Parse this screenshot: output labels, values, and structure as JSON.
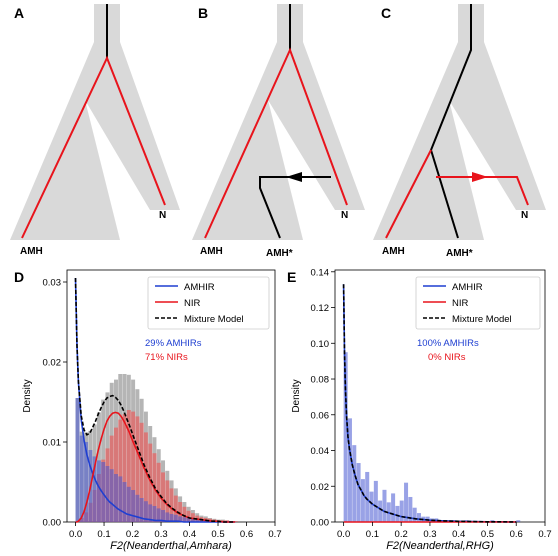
{
  "panels": {
    "A": {
      "label": "A",
      "tips": {
        "amh": "AMH",
        "n": "N"
      }
    },
    "B": {
      "label": "B",
      "tips": {
        "amh": "AMH",
        "amh_star": "AMH*",
        "n": "N"
      }
    },
    "C": {
      "label": "C",
      "tips": {
        "amh": "AMH",
        "amh_star": "AMH*",
        "n": "N"
      }
    }
  },
  "colors": {
    "tree_body": "#d9d9d9",
    "red": "#e8141c",
    "black": "#000000",
    "amhir": "#1f3fd1",
    "nir": "#e8141c",
    "mixture": "#000000"
  },
  "chart_data": [
    {
      "panel": "D",
      "type": "bar",
      "xlabel": "F2(Neanderthal,Amhara)",
      "ylabel": "Density",
      "xlim": [
        -0.03,
        0.7
      ],
      "ylim": [
        0,
        0.0315
      ],
      "xticks": [
        "0.0",
        "0.1",
        "0.2",
        "0.3",
        "0.4",
        "0.5",
        "0.6",
        "0.7"
      ],
      "yticks": [
        "0.00",
        "0.01",
        "0.02",
        "0.03"
      ],
      "legend": [
        "AMHIR",
        "NIR",
        "Mixture Model"
      ],
      "legend_position": "top-right",
      "annotations": [
        {
          "text": "29% AMHIRs",
          "color": "#1f3fd1"
        },
        {
          "text": "71% NIRs",
          "color": "#e8141c"
        }
      ],
      "bin_width": 0.015,
      "hist_blue": [
        0.0155,
        0.0108,
        0.01,
        0.009,
        0.0082,
        0.0077,
        0.0075,
        0.007,
        0.0066,
        0.006,
        0.0057,
        0.005,
        0.0044,
        0.004,
        0.0034,
        0.003,
        0.0026,
        0.0022,
        0.002,
        0.0017,
        0.0015,
        0.0012,
        0.001,
        0.0009,
        0.0007,
        0.0006,
        0.0005,
        0.0004,
        0.0003,
        0.0002,
        0.0002,
        0.0001,
        0.0001,
        0.0001,
        0.0001,
        0.0,
        0.0,
        0.0
      ],
      "hist_red": [
        0.0,
        0.0005,
        0.0012,
        0.0024,
        0.004,
        0.006,
        0.0078,
        0.0092,
        0.0108,
        0.0118,
        0.0128,
        0.0135,
        0.014,
        0.0138,
        0.0132,
        0.0124,
        0.0112,
        0.0098,
        0.0086,
        0.0074,
        0.0062,
        0.0052,
        0.0042,
        0.0033,
        0.0025,
        0.0019,
        0.0014,
        0.0011,
        0.0008,
        0.0006,
        0.0005,
        0.0004,
        0.0003,
        0.0002,
        0.0002,
        0.0002,
        0.0001,
        0.0001
      ],
      "hist_total": [
        0.0155,
        0.0113,
        0.0112,
        0.0114,
        0.0122,
        0.0137,
        0.0153,
        0.0162,
        0.0174,
        0.0178,
        0.0185,
        0.0185,
        0.0184,
        0.0178,
        0.0166,
        0.0154,
        0.0138,
        0.012,
        0.0106,
        0.0091,
        0.0077,
        0.0064,
        0.0052,
        0.0042,
        0.0032,
        0.0025,
        0.0019,
        0.0015,
        0.0011,
        0.0008,
        0.0007,
        0.0005,
        0.0004,
        0.0003,
        0.0003,
        0.0002,
        0.0001,
        0.0001
      ],
      "curves": {
        "x": [
          0.0,
          0.005,
          0.01,
          0.02,
          0.03,
          0.04,
          0.05,
          0.06,
          0.07,
          0.08,
          0.09,
          0.1,
          0.11,
          0.12,
          0.13,
          0.14,
          0.15,
          0.16,
          0.17,
          0.18,
          0.19,
          0.2,
          0.22,
          0.24,
          0.26,
          0.28,
          0.3,
          0.32,
          0.34,
          0.36,
          0.38,
          0.4,
          0.42,
          0.44,
          0.46,
          0.48,
          0.5,
          0.52,
          0.54,
          0.56
        ],
        "amhir": [
          0.0305,
          0.022,
          0.0175,
          0.0128,
          0.0102,
          0.0084,
          0.0071,
          0.0061,
          0.0052,
          0.0045,
          0.0039,
          0.0034,
          0.0029,
          0.0025,
          0.0022,
          0.0019,
          0.0016,
          0.0014,
          0.0012,
          0.001,
          0.0009,
          0.0008,
          0.0006,
          0.0004,
          0.0003,
          0.0002,
          0.0002,
          0.0001,
          0.0001,
          0.0001,
          0.0,
          0.0,
          0.0,
          0.0,
          0.0,
          0.0,
          0.0,
          0.0,
          0.0,
          0.0
        ],
        "nir": [
          0.0,
          0.0,
          0.0001,
          0.0005,
          0.0013,
          0.0025,
          0.004,
          0.0057,
          0.0074,
          0.009,
          0.0104,
          0.0116,
          0.0126,
          0.0132,
          0.0136,
          0.0137,
          0.0136,
          0.0132,
          0.0126,
          0.0119,
          0.0111,
          0.0102,
          0.0085,
          0.0068,
          0.0053,
          0.004,
          0.003,
          0.0022,
          0.0016,
          0.0011,
          0.0008,
          0.0005,
          0.0004,
          0.0003,
          0.0002,
          0.0001,
          0.0001,
          0.0,
          0.0,
          0.0
        ],
        "mixture": [
          0.0305,
          0.022,
          0.0176,
          0.0133,
          0.0115,
          0.0109,
          0.0111,
          0.0118,
          0.0126,
          0.0135,
          0.0143,
          0.015,
          0.0155,
          0.0157,
          0.0158,
          0.0156,
          0.0152,
          0.0146,
          0.0138,
          0.0129,
          0.012,
          0.011,
          0.0091,
          0.0072,
          0.0056,
          0.0042,
          0.0032,
          0.0023,
          0.0017,
          0.0012,
          0.0008,
          0.0005,
          0.0004,
          0.0003,
          0.0002,
          0.0001,
          0.0001,
          0.0,
          0.0,
          0.0
        ]
      }
    },
    {
      "panel": "E",
      "type": "bar",
      "xlabel": "F2(Neanderthal,RHG)",
      "ylabel": "Density",
      "xlim": [
        -0.03,
        0.7
      ],
      "ylim": [
        0,
        0.141
      ],
      "xticks": [
        "0.0",
        "0.1",
        "0.2",
        "0.3",
        "0.4",
        "0.5",
        "0.6",
        "0.7"
      ],
      "yticks": [
        "0.00",
        "0.02",
        "0.04",
        "0.06",
        "0.08",
        "0.10",
        "0.12",
        "0.14"
      ],
      "legend": [
        "AMHIR",
        "NIR",
        "Mixture Model"
      ],
      "legend_position": "top-right",
      "annotations": [
        {
          "text": "100% AMHIRs",
          "color": "#1f3fd1"
        },
        {
          "text": "0% NIRs",
          "color": "#e8141c"
        }
      ],
      "bin_width": 0.015,
      "hist_blue": [
        0.095,
        0.058,
        0.043,
        0.033,
        0.024,
        0.028,
        0.017,
        0.023,
        0.012,
        0.018,
        0.011,
        0.016,
        0.009,
        0.012,
        0.022,
        0.014,
        0.008,
        0.005,
        0.003,
        0.003,
        0.002,
        0.002,
        0.001,
        0.001,
        0.001,
        0.001,
        0.0,
        0.0,
        0.001,
        0.0,
        0.0,
        0.0,
        0.0,
        0.0,
        0.001,
        0.0,
        0.0,
        0.0,
        0.0,
        0.0,
        0.001
      ],
      "curves": {
        "x": [
          0.0,
          0.003,
          0.006,
          0.01,
          0.015,
          0.02,
          0.03,
          0.04,
          0.05,
          0.06,
          0.07,
          0.08,
          0.1,
          0.12,
          0.14,
          0.16,
          0.18,
          0.2,
          0.25,
          0.3,
          0.35,
          0.4,
          0.45,
          0.5,
          0.55,
          0.6
        ],
        "amhir": [
          0.133,
          0.095,
          0.075,
          0.06,
          0.048,
          0.041,
          0.032,
          0.026,
          0.021,
          0.018,
          0.015,
          0.013,
          0.01,
          0.008,
          0.006,
          0.005,
          0.004,
          0.003,
          0.0018,
          0.001,
          0.0006,
          0.0004,
          0.0002,
          0.0001,
          0.0001,
          0.0
        ],
        "nir": [
          0.0,
          0.0,
          0.0,
          0.0,
          0.0,
          0.0,
          0.0,
          0.0,
          0.0,
          0.0,
          0.0,
          0.0,
          0.0,
          0.0,
          0.0,
          0.0,
          0.0,
          0.0,
          0.0,
          0.0,
          0.0,
          0.0,
          0.0,
          0.0,
          0.0,
          0.0
        ],
        "mixture": [
          0.133,
          0.095,
          0.075,
          0.06,
          0.048,
          0.041,
          0.032,
          0.026,
          0.021,
          0.018,
          0.015,
          0.013,
          0.01,
          0.008,
          0.006,
          0.005,
          0.004,
          0.003,
          0.0018,
          0.001,
          0.0006,
          0.0004,
          0.0002,
          0.0001,
          0.0001,
          0.0
        ]
      }
    }
  ]
}
